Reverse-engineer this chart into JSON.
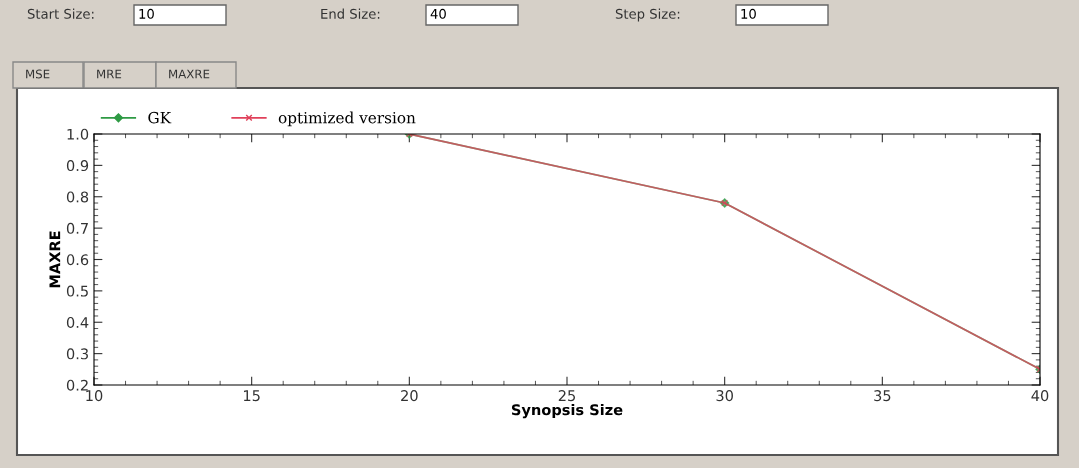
{
  "chart_data": {
    "type": "line",
    "x": [
      20,
      30,
      40
    ],
    "series": [
      {
        "name": "GK",
        "color": "#2e9a44",
        "values": [
          1.0,
          0.78,
          0.25
        ],
        "marker": "diamond"
      },
      {
        "name": "optimized version",
        "color": "#e0405a",
        "values": [
          1.0,
          0.78,
          0.25
        ],
        "marker": "cross"
      }
    ],
    "xlabel": "Synopsis Size",
    "ylabel": "MAXRE",
    "xlim": [
      10,
      40
    ],
    "xticks": [
      10,
      15,
      20,
      25,
      30,
      35,
      40
    ],
    "ylim": [
      0.2,
      1.0
    ],
    "yticks": [
      {
        "value": 0.2,
        "label": "0.2"
      },
      {
        "value": 0.3,
        "label": "0.3"
      },
      {
        "value": 0.4,
        "label": "0.4"
      },
      {
        "value": 0.5,
        "label": "0.5"
      },
      {
        "value": 0.6,
        "label": "0.6"
      },
      {
        "value": 0.7,
        "label": "0.7"
      },
      {
        "value": 0.8,
        "label": "0.8"
      },
      {
        "value": 0.9,
        "label": "0.9"
      },
      {
        "value": 1.0,
        "label": "1.0"
      }
    ],
    "legend": "top",
    "grid": false,
    "line_style": "solid",
    "annotations": [
      "Start Size:",
      "10",
      "End Size:",
      "40",
      "Step Size:",
      "10",
      "MSE",
      "MRE",
      "MAXRE"
    ]
  }
}
